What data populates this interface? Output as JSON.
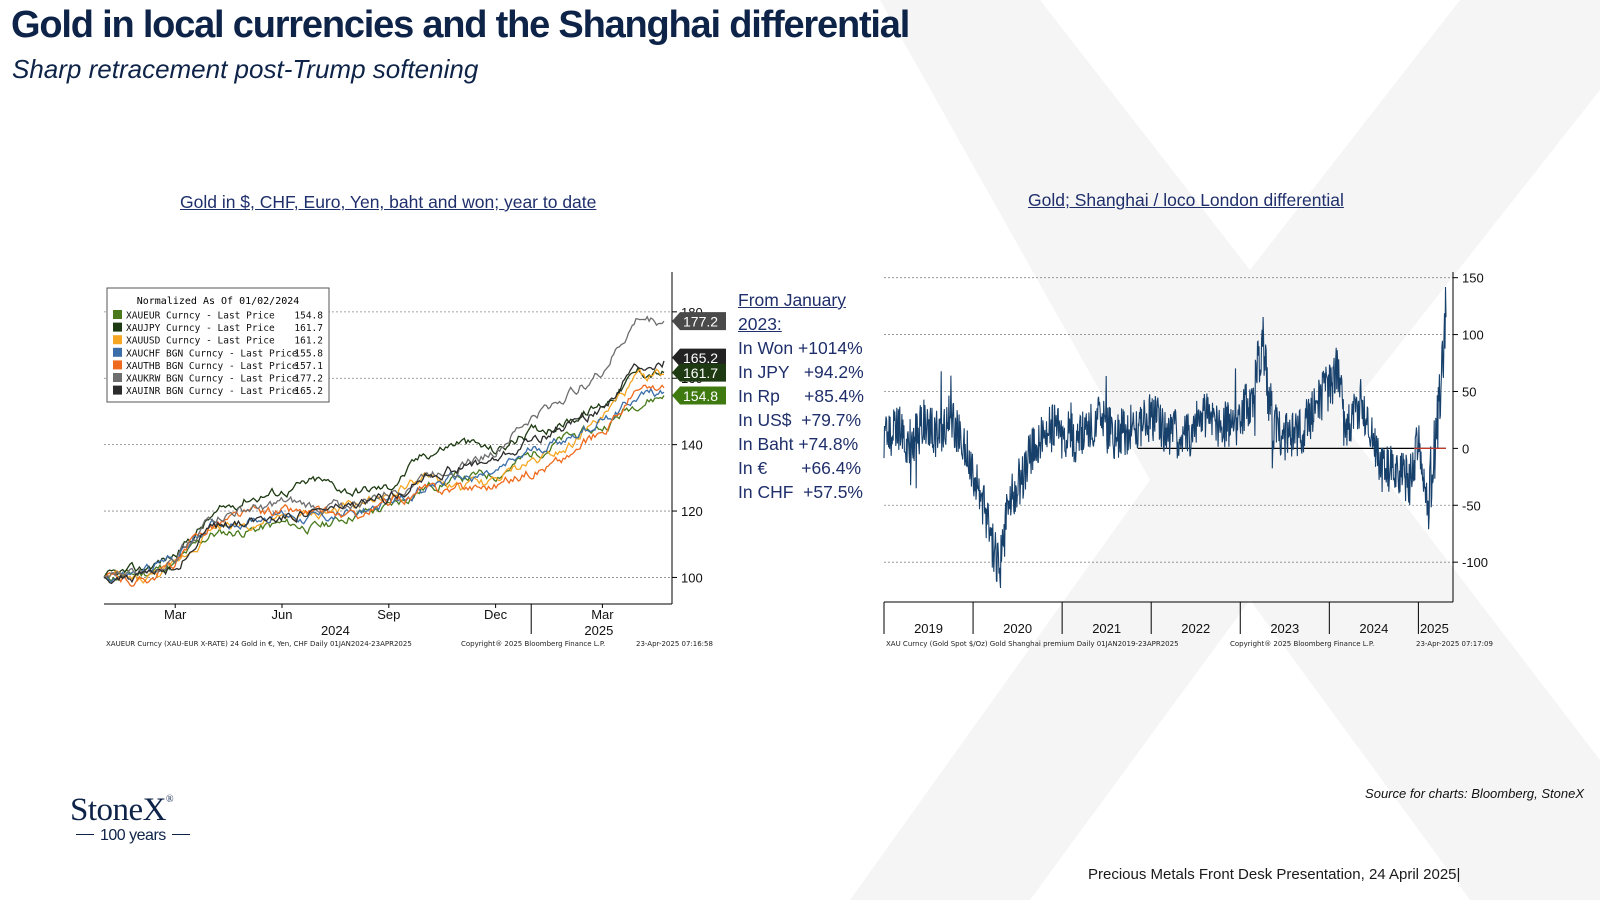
{
  "page": {
    "title": "Gold in local currencies and the Shanghai differential",
    "subtitle": "Sharp retracement post-Trump softening",
    "source": "Source for charts: Bloomberg, StoneX",
    "footer": "Precious Metals Front Desk Presentation, 24 April 2025|",
    "logo": {
      "brand": "StoneX",
      "years": "100 years"
    }
  },
  "stats": {
    "heading_1": "From January",
    "heading_2": "2023:",
    "rows": [
      "In Won +1014%",
      "In JPY   +94.2%",
      "In Rp     +85.4%",
      "In US$  +79.7%",
      "In Baht +74.8%",
      "In €       +66.4%",
      "In CHF  +57.5%"
    ]
  },
  "chart_data": [
    {
      "type": "line",
      "heading": "Gold in $, CHF, Euro, Yen, baht and won; year to date",
      "legend_title": "Normalized As Of 01/02/2024",
      "legend_position": "top-left",
      "ylim": [
        92,
        192
      ],
      "y_ticks": [
        100,
        120,
        140,
        160,
        180
      ],
      "y_tick_labels": [
        "100",
        "120",
        "140",
        "160",
        "180"
      ],
      "x_tick_labels": [
        "Mar",
        "Jun",
        "Sep",
        "Dec",
        "Mar"
      ],
      "x_year_labels": [
        "2024",
        "2025"
      ],
      "grid": true,
      "end_labels": [
        "177.2",
        "165.2",
        "161.7",
        "154.8"
      ],
      "footnote_left": "XAUEUR Curncy (XAU-EUR X-RATE) 24 Gold in €, Yen, CHF  Daily 01JAN2024-23APR2025",
      "footnote_mid": "Copyright® 2025 Bloomberg Finance L.P.",
      "footnote_right": "23-Apr-2025 07:16:58",
      "x_months": [
        0,
        1,
        2,
        3,
        4,
        5,
        6,
        7,
        8,
        9,
        10,
        11,
        12,
        13,
        14,
        15,
        15.73
      ],
      "series": [
        {
          "name": "XAUEUR Curncy - Last Price",
          "last": "154.8",
          "color": "#4a7a1c",
          "values": [
            100,
            101,
            104,
            113,
            114,
            116,
            115,
            119,
            121,
            127,
            130,
            131,
            137,
            142,
            145,
            153,
            154.8
          ]
        },
        {
          "name": "XAUJPY Curncy - Last Price",
          "last": "161.7",
          "color": "#1e3a12",
          "values": [
            100,
            102,
            107,
            118,
            124,
            126,
            129,
            126,
            127,
            137,
            141,
            138,
            144,
            147,
            152,
            162,
            161.7
          ]
        },
        {
          "name": "XAUUSD Curncy - Last Price",
          "last": "161.2",
          "color": "#f5a623",
          "values": [
            100,
            99,
            103,
            115,
            116,
            117,
            119,
            121,
            125,
            130,
            127,
            129,
            135,
            140,
            148,
            160,
            161.2
          ]
        },
        {
          "name": "XAUCHF BGN Curncy - Last Price",
          "last": "155.8",
          "color": "#3b6ea8",
          "values": [
            100,
            101,
            106,
            116,
            117,
            119,
            118,
            119,
            122,
            127,
            130,
            131,
            138,
            142,
            147,
            155,
            155.8
          ]
        },
        {
          "name": "XAUTHB BGN Curncy - Last Price",
          "last": "157.1",
          "color": "#ef6a1d",
          "values": [
            100,
            99,
            104,
            116,
            119,
            120,
            119,
            118,
            122,
            126,
            127,
            128,
            132,
            136,
            144,
            156,
            157.1
          ]
        },
        {
          "name": "XAUKRW BGN Curncy - Last Price",
          "last": "177.2",
          "color": "#6e6e6e",
          "values": [
            100,
            102,
            106,
            118,
            120,
            122,
            121,
            122,
            125,
            131,
            134,
            138,
            148,
            155,
            162,
            178,
            177.2
          ]
        },
        {
          "name": "XAUINR BGN Curncy - Last Price",
          "last": "165.2",
          "color": "#2b2b2b",
          "values": [
            100,
            100,
            103,
            115,
            117,
            119,
            120,
            121,
            124,
            131,
            133,
            135,
            141,
            146,
            151,
            164,
            165.2
          ]
        }
      ]
    },
    {
      "type": "line",
      "heading": "Gold; Shanghai / loco London differential",
      "ylim": [
        -135,
        155
      ],
      "y_ticks": [
        150,
        100,
        50,
        0,
        -50,
        -100
      ],
      "y_tick_labels": [
        "150",
        "100",
        "50",
        "0",
        "-50",
        "-100"
      ],
      "x_tick_labels": [
        "2019",
        "2020",
        "2021",
        "2022",
        "2023",
        "2024",
        "2025"
      ],
      "grid": true,
      "zero_line": true,
      "series_color": "#17406b",
      "footnote_left": "XAU Curncy (Gold Spot  $/Oz) Gold Shanghai premium  Daily 01JAN2019-23APR2025",
      "footnote_mid": "Copyright® 2025 Bloomberg Finance L.P.",
      "footnote_right": "23-Apr-2025 07:17:09",
      "series": [
        {
          "x": [
            2019.0,
            2019.15,
            2019.3,
            2019.45,
            2019.6,
            2019.75,
            2019.9,
            2020.0,
            2020.1,
            2020.2,
            2020.3,
            2020.38,
            2020.45,
            2020.55,
            2020.65,
            2020.75,
            2020.85,
            2021.0,
            2021.2,
            2021.4,
            2021.6,
            2021.8,
            2022.0,
            2022.2,
            2022.4,
            2022.6,
            2022.8,
            2023.0,
            2023.15,
            2023.25,
            2023.35,
            2023.45,
            2023.55,
            2023.7,
            2023.85,
            2024.0,
            2024.1,
            2024.2,
            2024.35,
            2024.5,
            2024.6,
            2024.75,
            2024.9,
            2025.0,
            2025.1,
            2025.2,
            2025.31
          ],
          "y": [
            10,
            18,
            5,
            22,
            12,
            28,
            5,
            -25,
            -45,
            -80,
            -105,
            -60,
            -40,
            -25,
            -5,
            10,
            20,
            12,
            8,
            25,
            10,
            20,
            28,
            15,
            10,
            30,
            20,
            25,
            50,
            100,
            30,
            15,
            8,
            15,
            40,
            55,
            70,
            20,
            40,
            10,
            -20,
            -15,
            -30,
            5,
            -50,
            10,
            120
          ]
        }
      ]
    }
  ]
}
